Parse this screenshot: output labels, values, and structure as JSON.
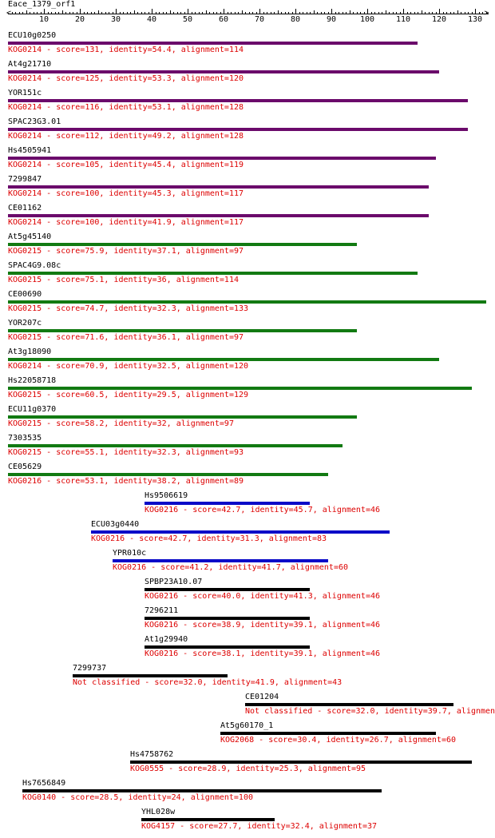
{
  "query_name": "Eace_1379_orf1",
  "axis": {
    "min": 0,
    "max": 133,
    "ticks": [
      10,
      20,
      30,
      40,
      50,
      60,
      70,
      80,
      90,
      100,
      110,
      120,
      130
    ]
  },
  "colors": {
    "KOG0214": "#6b0a6b",
    "KOG0215": "#127a12",
    "KOG0216_blue": "#0a0ac8",
    "default": "#000000",
    "name_text": "#000000",
    "desc_text": "#dd0000"
  },
  "hits": [
    {
      "name": "ECU10g0250",
      "desc": "KOG0214 - score=131, identity=54.4, alignment=114",
      "start": 0,
      "end": 114,
      "color": "#6b0a6b"
    },
    {
      "name": "At4g21710",
      "desc": "KOG0214 - score=125, identity=53.3, alignment=120",
      "start": 0,
      "end": 120,
      "color": "#6b0a6b"
    },
    {
      "name": "YOR151c",
      "desc": "KOG0214 - score=116, identity=53.1, alignment=128",
      "start": 0,
      "end": 128,
      "color": "#6b0a6b"
    },
    {
      "name": "SPAC23G3.01",
      "desc": "KOG0214 - score=112, identity=49.2, alignment=128",
      "start": 0,
      "end": 128,
      "color": "#6b0a6b"
    },
    {
      "name": "Hs4505941",
      "desc": "KOG0214 - score=105, identity=45.4, alignment=119",
      "start": 0,
      "end": 119,
      "color": "#6b0a6b"
    },
    {
      "name": "7299847",
      "desc": "KOG0214 - score=100, identity=45.3, alignment=117",
      "start": 0,
      "end": 117,
      "color": "#6b0a6b"
    },
    {
      "name": "CE01162",
      "desc": "KOG0214 - score=100, identity=41.9, alignment=117",
      "start": 0,
      "end": 117,
      "color": "#6b0a6b"
    },
    {
      "name": "At5g45140",
      "desc": "KOG0215 - score=75.9, identity=37.1, alignment=97",
      "start": 0,
      "end": 97,
      "color": "#127a12"
    },
    {
      "name": "SPAC4G9.08c",
      "desc": "KOG0215 - score=75.1, identity=36, alignment=114",
      "start": 0,
      "end": 114,
      "color": "#127a12"
    },
    {
      "name": "CE00690",
      "desc": "KOG0215 - score=74.7, identity=32.3, alignment=133",
      "start": 0,
      "end": 133,
      "color": "#127a12"
    },
    {
      "name": "YOR207c",
      "desc": "KOG0215 - score=71.6, identity=36.1, alignment=97",
      "start": 0,
      "end": 97,
      "color": "#127a12"
    },
    {
      "name": "At3g18090",
      "desc": "KOG0214 - score=70.9, identity=32.5, alignment=120",
      "start": 0,
      "end": 120,
      "color": "#127a12"
    },
    {
      "name": "Hs22058718",
      "desc": "KOG0215 - score=60.5, identity=29.5, alignment=129",
      "start": 0,
      "end": 129,
      "color": "#127a12"
    },
    {
      "name": "ECU11g0370",
      "desc": "KOG0215 - score=58.2, identity=32, alignment=97",
      "start": 0,
      "end": 97,
      "color": "#127a12"
    },
    {
      "name": "7303535",
      "desc": "KOG0215 - score=55.1, identity=32.3, alignment=93",
      "start": 0,
      "end": 93,
      "color": "#127a12"
    },
    {
      "name": "CE05629",
      "desc": "KOG0216 - score=53.1, identity=38.2, alignment=89",
      "start": 0,
      "end": 89,
      "color": "#127a12"
    },
    {
      "name": "Hs9506619",
      "desc": "KOG0216 - score=42.7, identity=45.7, alignment=46",
      "start": 38,
      "end": 84,
      "color": "#0a0ac8"
    },
    {
      "name": "ECU03g0440",
      "desc": "KOG0216 - score=42.7, identity=31.3, alignment=83",
      "start": 23,
      "end": 106,
      "color": "#0a0ac8"
    },
    {
      "name": "YPR010c",
      "desc": "KOG0216 - score=41.2, identity=41.7, alignment=60",
      "start": 29,
      "end": 89,
      "color": "#0a0ac8"
    },
    {
      "name": "SPBP23A10.07",
      "desc": "KOG0216 - score=40.0, identity=41.3, alignment=46",
      "start": 38,
      "end": 84,
      "color": "#000000"
    },
    {
      "name": "7296211",
      "desc": "KOG0216 - score=38.9, identity=39.1, alignment=46",
      "start": 38,
      "end": 84,
      "color": "#000000"
    },
    {
      "name": "At1g29940",
      "desc": "KOG0216 - score=38.1, identity=39.1, alignment=46",
      "start": 38,
      "end": 84,
      "color": "#000000"
    },
    {
      "name": "7299737",
      "desc": "Not classified - score=32.0, identity=41.9, alignment=43",
      "start": 18,
      "end": 61,
      "color": "#000000"
    },
    {
      "name": "CE01204",
      "desc": "Not classified - score=32.0, identity=39.7, alignmen",
      "start": 66,
      "end": 124,
      "color": "#000000"
    },
    {
      "name": "At5g60170_1",
      "desc": "KOG2068 - score=30.4, identity=26.7, alignment=60",
      "start": 59,
      "end": 119,
      "color": "#000000"
    },
    {
      "name": "Hs4758762",
      "desc": "KOG0555 - score=28.9, identity=25.3, alignment=95",
      "start": 34,
      "end": 129,
      "color": "#000000"
    },
    {
      "name": "Hs7656849",
      "desc": "KOG0140 - score=28.5, identity=24, alignment=100",
      "start": 4,
      "end": 104,
      "color": "#000000"
    },
    {
      "name": "YHL028w",
      "desc": "KOG4157 - score=27.7, identity=32.4, alignment=37",
      "start": 37,
      "end": 74,
      "color": "#000000"
    }
  ]
}
